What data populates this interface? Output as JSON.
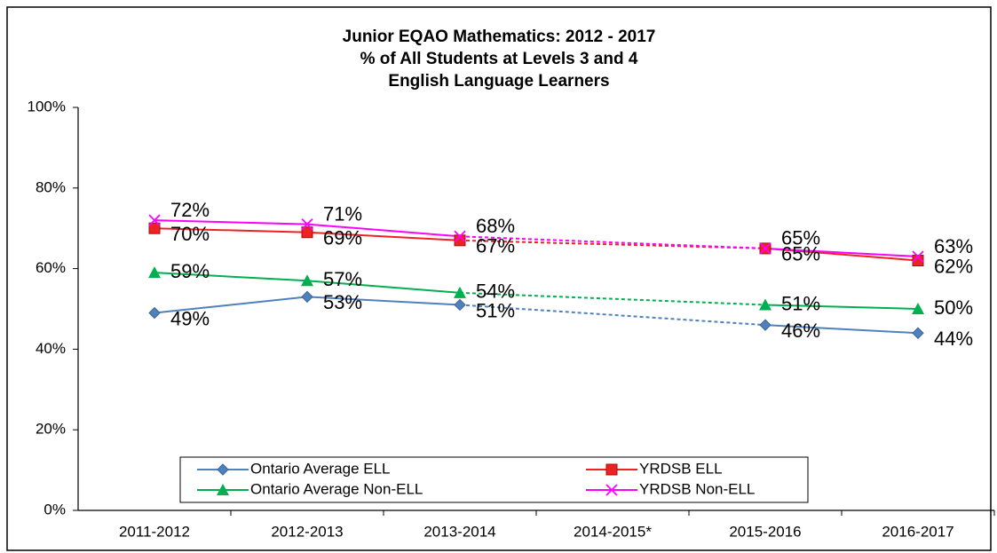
{
  "chart_data": {
    "type": "line",
    "title": "Junior EQAO Mathematics: 2012 - 2017",
    "subtitle": [
      "% of All Students at Levels 3 and 4",
      "English Language Learners"
    ],
    "categories": [
      "2011-2012",
      "2012-2013",
      "2013-2014",
      "2014-2015*",
      "2015-2016",
      "2016-2017"
    ],
    "series": [
      {
        "name": "Ontario Average ELL",
        "color": "#4f81bd",
        "marker": "diamond",
        "values": [
          49,
          53,
          51,
          null,
          46,
          44
        ],
        "value_labels": [
          "49%",
          "53%",
          "51%",
          null,
          "46%",
          "44%"
        ]
      },
      {
        "name": "YRDSB ELL",
        "color": "#ee2222",
        "marker": "square",
        "values": [
          70,
          69,
          67,
          null,
          65,
          62
        ],
        "value_labels": [
          "70%",
          "69%",
          "67%",
          null,
          "65%",
          "62%"
        ]
      },
      {
        "name": "Ontario Average Non-ELL",
        "color": "#00b050",
        "marker": "triangle",
        "values": [
          59,
          57,
          54,
          null,
          51,
          50
        ],
        "value_labels": [
          "59%",
          "57%",
          "54%",
          null,
          "51%",
          "50%"
        ]
      },
      {
        "name": "YRDSB Non-ELL",
        "color": "#ff00ff",
        "marker": "x",
        "values": [
          72,
          71,
          68,
          null,
          65,
          63
        ],
        "value_labels": [
          "72%",
          "71%",
          "68%",
          null,
          "65%",
          "63%"
        ]
      }
    ],
    "ylim": [
      0,
      100
    ],
    "yticks": [
      {
        "value": 0,
        "label": "0%"
      },
      {
        "value": 20,
        "label": "20%"
      },
      {
        "value": 40,
        "label": "40%"
      },
      {
        "value": 60,
        "label": "60%"
      },
      {
        "value": 80,
        "label": "80%"
      },
      {
        "value": 100,
        "label": "100%"
      }
    ],
    "gap_line": "dashed",
    "grid": false,
    "legend": "bottom"
  }
}
